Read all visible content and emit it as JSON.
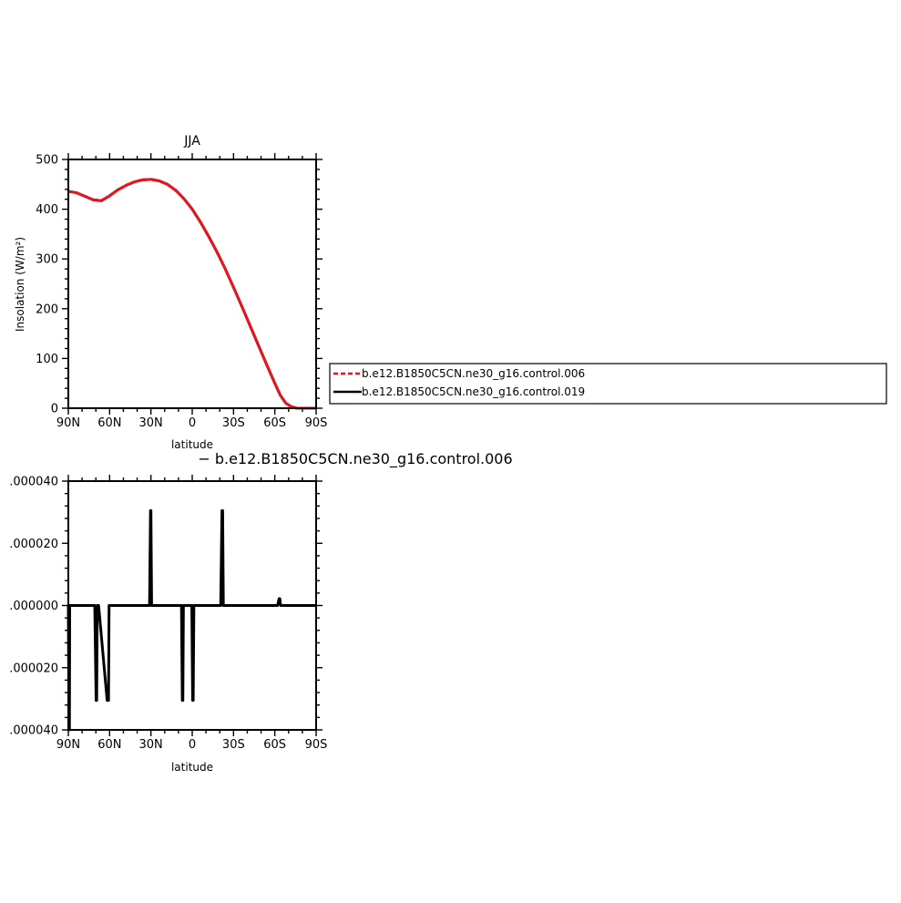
{
  "chart_data": [
    {
      "type": "line",
      "title": "JJA",
      "xlabel": "latitude",
      "ylabel": "Insolation (W/m²)",
      "xlim": [
        90,
        -90
      ],
      "ylim": [
        0,
        500
      ],
      "x_tick_values": [
        90,
        60,
        30,
        0,
        -30,
        -60,
        -90
      ],
      "x_tick_labels": [
        "90N",
        "60N",
        "30N",
        "0",
        "30S",
        "60S",
        "90S"
      ],
      "y_tick_values": [
        0,
        100,
        200,
        300,
        400,
        500
      ],
      "y_tick_labels": [
        "0",
        "100",
        "200",
        "300",
        "400",
        "500"
      ],
      "x": [
        90,
        84,
        78,
        72,
        66,
        60,
        54,
        48,
        42,
        36,
        30,
        24,
        18,
        12,
        6,
        0,
        -6,
        -12,
        -18,
        -24,
        -30,
        -36,
        -42,
        -48,
        -54,
        -60,
        -64,
        -68,
        -72,
        -76,
        -80,
        -84,
        -90
      ],
      "series": [
        {
          "name": "b.e12.B1850C5CN.ne30_g16.control.006",
          "color": "#e8141e",
          "style": "dashed",
          "values": [
            436,
            433,
            426,
            419,
            417,
            427,
            439,
            448,
            455,
            459,
            460,
            457,
            450,
            438,
            421,
            400,
            374,
            345,
            314,
            280,
            243,
            205,
            166,
            127,
            88,
            50,
            26,
            10,
            3,
            0,
            0,
            0,
            0
          ]
        },
        {
          "name": "b.e12.B1850C5CN.ne30_g16.control.019",
          "color": "#000000",
          "style": "solid",
          "values": [
            436,
            433,
            426,
            419,
            417,
            427,
            439,
            448,
            455,
            459,
            460,
            457,
            450,
            438,
            421,
            400,
            374,
            345,
            314,
            280,
            243,
            205,
            166,
            127,
            88,
            50,
            26,
            10,
            3,
            0,
            0,
            0,
            0
          ]
        }
      ],
      "legend_position": "right"
    },
    {
      "type": "line",
      "title": "− b.e12.B1850C5CN.ne30_g16.control.006",
      "xlabel": "latitude",
      "ylabel": "",
      "xlim": [
        90,
        -90
      ],
      "ylim": [
        -4e-05,
        4e-05
      ],
      "x_tick_values": [
        90,
        60,
        30,
        0,
        -30,
        -60,
        -90
      ],
      "x_tick_labels": [
        "90N",
        "60N",
        "30N",
        "0",
        "30S",
        "60S",
        "90S"
      ],
      "y_tick_values": [
        4e-05,
        2e-05,
        0,
        -2e-05,
        -4e-05
      ],
      "y_tick_labels": [
        ".000040",
        ".000020",
        ".000000",
        ".000020",
        ".000040"
      ],
      "x": [
        90,
        89.5,
        89.2,
        89,
        70.8,
        69.8,
        69.4,
        69,
        68,
        61.8,
        60.8,
        60.4,
        60,
        59,
        31,
        30.3,
        30,
        29.5,
        28.8,
        7.8,
        7.2,
        6.8,
        6.4,
        5.5,
        0.3,
        -0.3,
        -0.7,
        -1.2,
        -2.2,
        -20.7,
        -21.6,
        -22.1,
        -22.6,
        -23.4,
        -62,
        -63.1,
        -63.6,
        -64.2,
        -90
      ],
      "series": [
        {
          "name": "",
          "color": "#000000",
          "style": "solid",
          "values": [
            0,
            -4e-05,
            -4e-05,
            0,
            0,
            -3.05e-05,
            -3.05e-05,
            0,
            0,
            -3.05e-05,
            -3.05e-05,
            0,
            0,
            0,
            0,
            3.05e-05,
            3.05e-05,
            0,
            0,
            0,
            -3.05e-05,
            -3.05e-05,
            0,
            0,
            0,
            -3.05e-05,
            -3.05e-05,
            0,
            0,
            0,
            3.05e-05,
            3.05e-05,
            0,
            0,
            0,
            2.2e-06,
            2.2e-06,
            0,
            0
          ]
        }
      ]
    }
  ]
}
